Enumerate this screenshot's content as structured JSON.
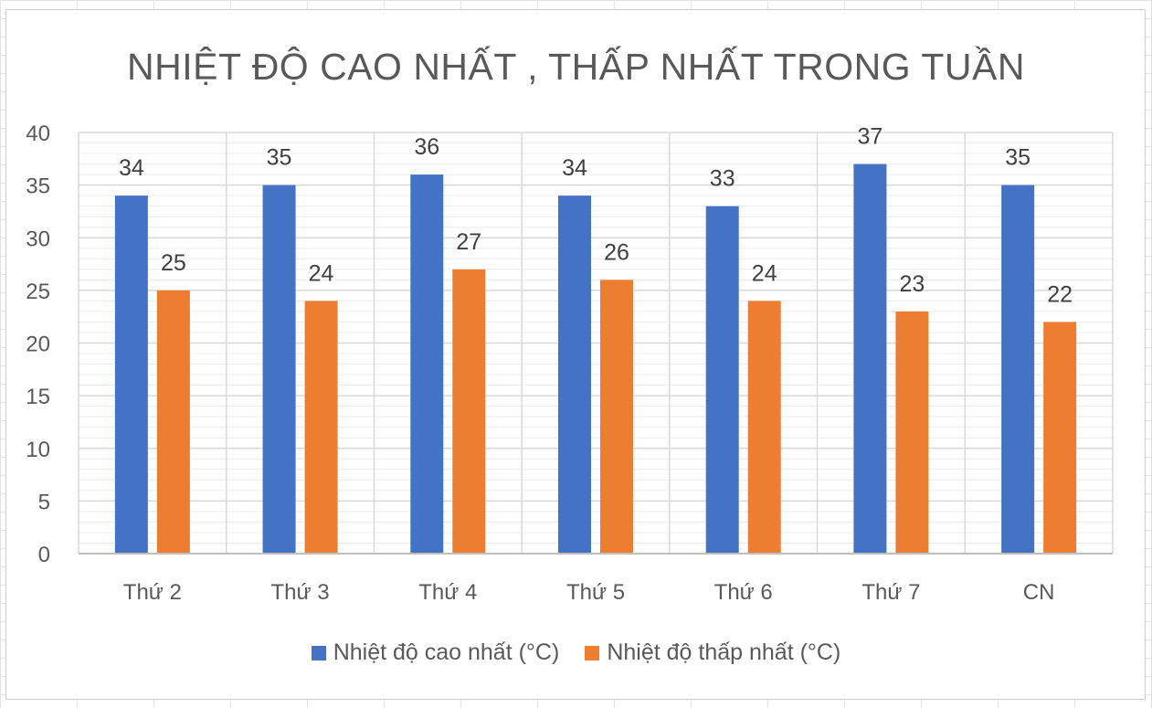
{
  "chart_data": {
    "type": "bar",
    "title": "NHIỆT ĐỘ CAO NHẤT , THẤP NHẤT TRONG TUẦN",
    "categories": [
      "Thứ 2",
      "Thứ 3",
      "Thứ 4",
      "Thứ 5",
      "Thứ 6",
      "Thứ 7",
      "CN"
    ],
    "series": [
      {
        "name": "Nhiệt độ cao nhất (°C)",
        "color": "#4472C4",
        "values": [
          34,
          35,
          36,
          34,
          33,
          37,
          35
        ]
      },
      {
        "name": "Nhiệt độ thấp nhất (°C)",
        "color": "#ED7D31",
        "values": [
          25,
          24,
          27,
          26,
          24,
          23,
          22
        ]
      }
    ],
    "ylim": [
      0,
      40
    ],
    "yticks": [
      "0",
      "5",
      "10",
      "15",
      "20",
      "25",
      "30",
      "35",
      "40"
    ],
    "xlabel": "",
    "ylabel": "",
    "grid": true,
    "data_labels": true,
    "legend_position": "bottom"
  }
}
